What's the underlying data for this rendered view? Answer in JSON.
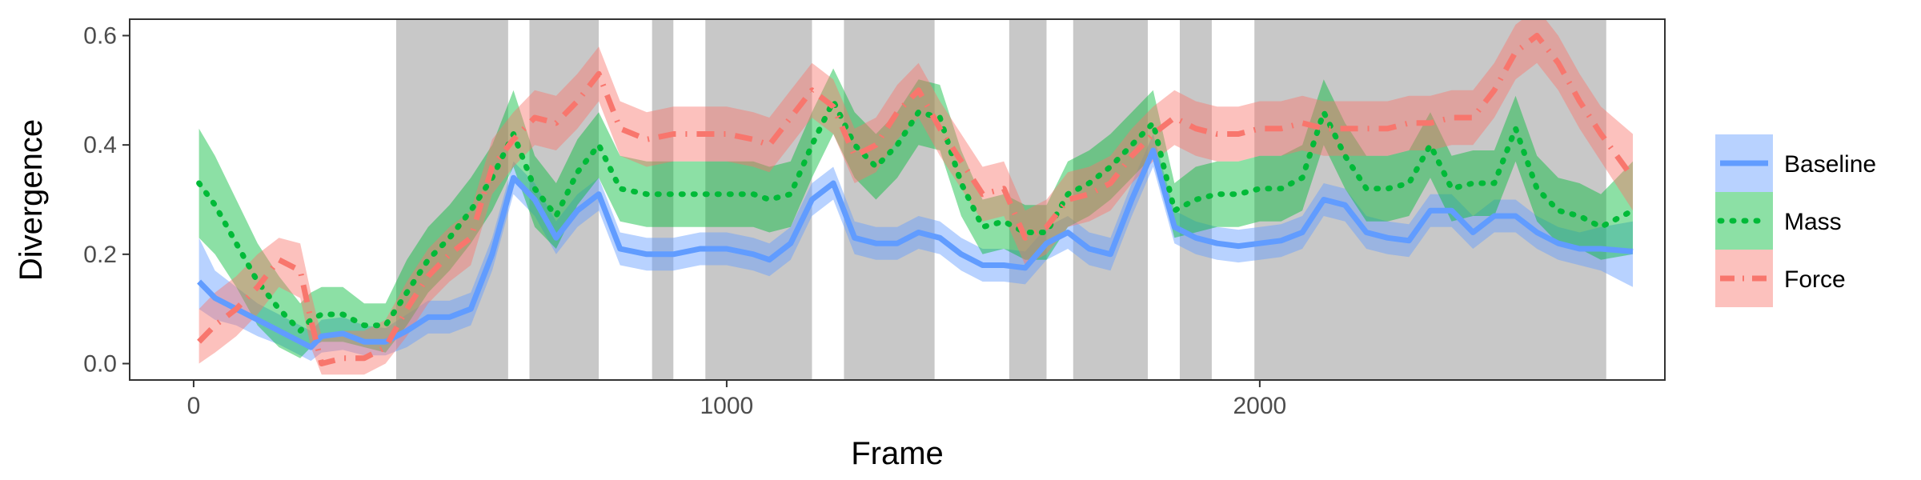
{
  "chart_data": {
    "type": "line",
    "xlabel": "Frame",
    "ylabel": "Divergence",
    "xlim": [
      -120,
      2760
    ],
    "ylim": [
      -0.03,
      0.63
    ],
    "x_ticks": [
      0,
      1000,
      2000
    ],
    "x_tick_labels": [
      "0",
      "1000",
      "2000"
    ],
    "y_ticks": [
      0.0,
      0.2,
      0.4,
      0.6
    ],
    "y_tick_labels": [
      "0.0",
      "0.2",
      "0.4",
      "0.6"
    ],
    "grid": false,
    "legend_position": "right",
    "shaded_regions": [
      [
        380,
        590
      ],
      [
        630,
        760
      ],
      [
        860,
        900
      ],
      [
        960,
        1160
      ],
      [
        1220,
        1390
      ],
      [
        1530,
        1600
      ],
      [
        1650,
        1790
      ],
      [
        1850,
        1910
      ],
      [
        1990,
        2650
      ]
    ],
    "shaded_color": "#c8c8c8",
    "x": [
      10,
      40,
      80,
      120,
      160,
      200,
      220,
      240,
      280,
      320,
      360,
      400,
      440,
      480,
      520,
      560,
      600,
      640,
      680,
      720,
      760,
      800,
      850,
      900,
      950,
      1000,
      1050,
      1080,
      1120,
      1160,
      1200,
      1240,
      1280,
      1320,
      1360,
      1400,
      1440,
      1480,
      1520,
      1560,
      1600,
      1640,
      1680,
      1720,
      1760,
      1800,
      1840,
      1880,
      1920,
      1960,
      2000,
      2040,
      2080,
      2120,
      2160,
      2200,
      2240,
      2280,
      2320,
      2360,
      2400,
      2440,
      2480,
      2520,
      2560,
      2600,
      2640,
      2700
    ],
    "series": [
      {
        "name": "Baseline",
        "color": "#619cff",
        "dash": "solid",
        "values": [
          0.15,
          0.12,
          0.1,
          0.08,
          0.06,
          0.04,
          0.03,
          0.05,
          0.055,
          0.04,
          0.04,
          0.06,
          0.085,
          0.085,
          0.1,
          0.2,
          0.34,
          0.3,
          0.23,
          0.28,
          0.31,
          0.21,
          0.2,
          0.2,
          0.21,
          0.21,
          0.2,
          0.19,
          0.22,
          0.3,
          0.33,
          0.23,
          0.22,
          0.22,
          0.24,
          0.23,
          0.2,
          0.18,
          0.18,
          0.175,
          0.22,
          0.24,
          0.21,
          0.2,
          0.3,
          0.39,
          0.25,
          0.23,
          0.22,
          0.215,
          0.22,
          0.225,
          0.24,
          0.3,
          0.29,
          0.24,
          0.23,
          0.225,
          0.28,
          0.28,
          0.24,
          0.27,
          0.27,
          0.24,
          0.22,
          0.21,
          0.21,
          0.205
        ],
        "lower": [
          0.1,
          0.08,
          0.07,
          0.05,
          0.035,
          0.015,
          0.005,
          0.02,
          0.025,
          0.015,
          0.015,
          0.03,
          0.055,
          0.055,
          0.07,
          0.17,
          0.31,
          0.27,
          0.2,
          0.25,
          0.28,
          0.18,
          0.17,
          0.17,
          0.18,
          0.18,
          0.17,
          0.16,
          0.19,
          0.27,
          0.3,
          0.2,
          0.19,
          0.19,
          0.21,
          0.2,
          0.17,
          0.15,
          0.15,
          0.145,
          0.19,
          0.21,
          0.18,
          0.17,
          0.27,
          0.36,
          0.22,
          0.2,
          0.19,
          0.185,
          0.19,
          0.195,
          0.21,
          0.27,
          0.26,
          0.21,
          0.2,
          0.195,
          0.25,
          0.25,
          0.21,
          0.24,
          0.24,
          0.21,
          0.19,
          0.18,
          0.17,
          0.14
        ],
        "upper": [
          0.23,
          0.17,
          0.14,
          0.11,
          0.09,
          0.07,
          0.06,
          0.08,
          0.085,
          0.07,
          0.065,
          0.09,
          0.115,
          0.115,
          0.13,
          0.23,
          0.37,
          0.33,
          0.26,
          0.31,
          0.34,
          0.24,
          0.23,
          0.23,
          0.24,
          0.24,
          0.23,
          0.22,
          0.25,
          0.33,
          0.36,
          0.26,
          0.25,
          0.25,
          0.27,
          0.26,
          0.23,
          0.21,
          0.21,
          0.205,
          0.25,
          0.27,
          0.24,
          0.23,
          0.33,
          0.42,
          0.28,
          0.26,
          0.25,
          0.245,
          0.25,
          0.255,
          0.27,
          0.33,
          0.32,
          0.27,
          0.26,
          0.255,
          0.31,
          0.31,
          0.27,
          0.3,
          0.3,
          0.27,
          0.25,
          0.24,
          0.25,
          0.26
        ]
      },
      {
        "name": "Mass",
        "color": "#00ba38",
        "dash": "dotted",
        "values": [
          0.33,
          0.29,
          0.22,
          0.15,
          0.1,
          0.06,
          0.08,
          0.09,
          0.09,
          0.07,
          0.07,
          0.13,
          0.19,
          0.23,
          0.28,
          0.34,
          0.42,
          0.32,
          0.27,
          0.35,
          0.4,
          0.32,
          0.31,
          0.31,
          0.31,
          0.31,
          0.31,
          0.3,
          0.31,
          0.4,
          0.48,
          0.4,
          0.36,
          0.4,
          0.46,
          0.45,
          0.33,
          0.25,
          0.26,
          0.24,
          0.24,
          0.31,
          0.33,
          0.36,
          0.4,
          0.44,
          0.28,
          0.3,
          0.31,
          0.31,
          0.32,
          0.32,
          0.34,
          0.46,
          0.38,
          0.32,
          0.32,
          0.33,
          0.4,
          0.32,
          0.33,
          0.33,
          0.43,
          0.32,
          0.28,
          0.27,
          0.25,
          0.28
        ],
        "lower": [
          0.23,
          0.2,
          0.14,
          0.07,
          0.03,
          0.01,
          0.03,
          0.04,
          0.04,
          0.03,
          0.02,
          0.07,
          0.13,
          0.17,
          0.22,
          0.28,
          0.36,
          0.25,
          0.21,
          0.29,
          0.34,
          0.26,
          0.25,
          0.25,
          0.25,
          0.25,
          0.25,
          0.24,
          0.25,
          0.34,
          0.42,
          0.34,
          0.3,
          0.34,
          0.4,
          0.39,
          0.27,
          0.2,
          0.21,
          0.19,
          0.19,
          0.25,
          0.27,
          0.3,
          0.34,
          0.38,
          0.23,
          0.24,
          0.25,
          0.25,
          0.26,
          0.26,
          0.28,
          0.4,
          0.32,
          0.26,
          0.26,
          0.27,
          0.34,
          0.26,
          0.27,
          0.27,
          0.37,
          0.26,
          0.22,
          0.21,
          0.19,
          0.2
        ],
        "upper": [
          0.43,
          0.38,
          0.3,
          0.22,
          0.16,
          0.11,
          0.13,
          0.14,
          0.14,
          0.11,
          0.11,
          0.19,
          0.25,
          0.29,
          0.34,
          0.4,
          0.5,
          0.38,
          0.33,
          0.41,
          0.46,
          0.38,
          0.37,
          0.37,
          0.37,
          0.37,
          0.37,
          0.36,
          0.37,
          0.46,
          0.54,
          0.46,
          0.42,
          0.46,
          0.52,
          0.51,
          0.39,
          0.3,
          0.31,
          0.29,
          0.29,
          0.37,
          0.39,
          0.42,
          0.46,
          0.5,
          0.33,
          0.36,
          0.37,
          0.37,
          0.38,
          0.38,
          0.4,
          0.52,
          0.44,
          0.38,
          0.38,
          0.39,
          0.46,
          0.38,
          0.39,
          0.39,
          0.49,
          0.38,
          0.34,
          0.33,
          0.31,
          0.37
        ]
      },
      {
        "name": "Force",
        "color": "#f8766d",
        "dash": "dashdot",
        "values": [
          0.04,
          0.07,
          0.1,
          0.14,
          0.19,
          0.17,
          0.08,
          0.0,
          0.01,
          0.01,
          0.03,
          0.1,
          0.16,
          0.2,
          0.23,
          0.36,
          0.41,
          0.45,
          0.44,
          0.48,
          0.53,
          0.43,
          0.41,
          0.42,
          0.42,
          0.42,
          0.41,
          0.4,
          0.45,
          0.5,
          0.47,
          0.38,
          0.4,
          0.46,
          0.5,
          0.43,
          0.37,
          0.31,
          0.32,
          0.23,
          0.25,
          0.3,
          0.31,
          0.33,
          0.38,
          0.42,
          0.45,
          0.43,
          0.42,
          0.42,
          0.43,
          0.43,
          0.44,
          0.43,
          0.43,
          0.43,
          0.43,
          0.44,
          0.44,
          0.45,
          0.45,
          0.5,
          0.57,
          0.6,
          0.55,
          0.48,
          0.42,
          0.34
        ],
        "lower": [
          0.0,
          0.02,
          0.05,
          0.09,
          0.14,
          0.12,
          0.03,
          -0.02,
          -0.02,
          -0.02,
          0.0,
          0.05,
          0.11,
          0.15,
          0.18,
          0.31,
          0.36,
          0.4,
          0.39,
          0.43,
          0.48,
          0.38,
          0.36,
          0.37,
          0.37,
          0.37,
          0.36,
          0.35,
          0.4,
          0.45,
          0.42,
          0.33,
          0.35,
          0.41,
          0.45,
          0.38,
          0.32,
          0.26,
          0.27,
          0.18,
          0.2,
          0.25,
          0.26,
          0.28,
          0.33,
          0.37,
          0.4,
          0.38,
          0.37,
          0.37,
          0.38,
          0.38,
          0.39,
          0.38,
          0.38,
          0.38,
          0.38,
          0.39,
          0.39,
          0.4,
          0.4,
          0.45,
          0.52,
          0.55,
          0.5,
          0.43,
          0.37,
          0.28
        ],
        "upper": [
          0.1,
          0.13,
          0.16,
          0.2,
          0.23,
          0.22,
          0.13,
          0.05,
          0.06,
          0.06,
          0.08,
          0.15,
          0.21,
          0.25,
          0.28,
          0.41,
          0.46,
          0.5,
          0.49,
          0.53,
          0.58,
          0.48,
          0.46,
          0.47,
          0.47,
          0.47,
          0.46,
          0.45,
          0.5,
          0.55,
          0.52,
          0.43,
          0.45,
          0.51,
          0.55,
          0.48,
          0.42,
          0.36,
          0.37,
          0.28,
          0.3,
          0.35,
          0.36,
          0.38,
          0.43,
          0.47,
          0.5,
          0.48,
          0.47,
          0.47,
          0.48,
          0.48,
          0.49,
          0.48,
          0.48,
          0.48,
          0.48,
          0.49,
          0.49,
          0.5,
          0.5,
          0.55,
          0.62,
          0.65,
          0.6,
          0.53,
          0.47,
          0.42
        ]
      }
    ]
  }
}
